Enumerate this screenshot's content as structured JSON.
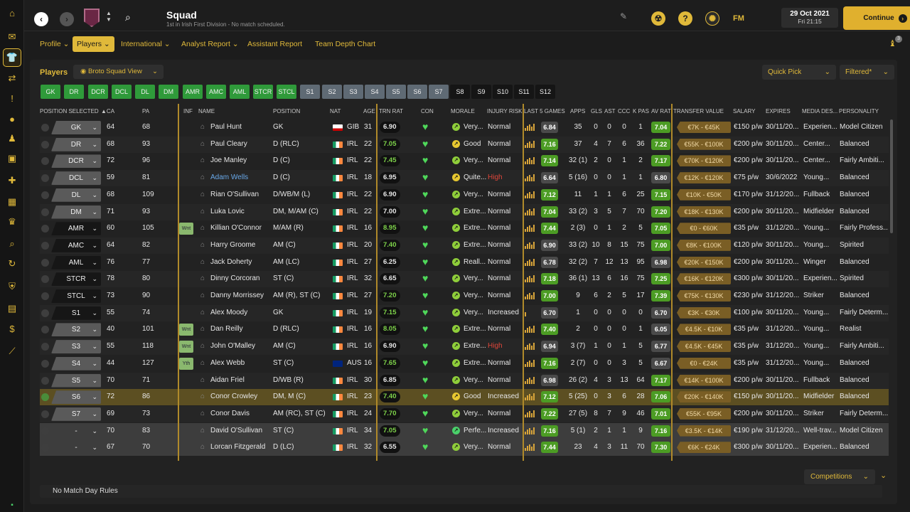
{
  "app": {
    "title": "Squad",
    "subtitle": "1st in Irish First Division - No match scheduled.",
    "date": "29 Oct 2021",
    "time": "Fri 21:15",
    "continue_label": "Continue",
    "fm_label": "FM",
    "notification_count": "3"
  },
  "nav_tabs": [
    {
      "label": "Profile"
    },
    {
      "label": "Players"
    },
    {
      "label": "International"
    },
    {
      "label": "Analyst Report"
    },
    {
      "label": "Assistant Report"
    },
    {
      "label": "Team Depth Chart"
    }
  ],
  "toolbar": {
    "section_label": "Players",
    "view_label": "Broto Squad View",
    "quick_pick": "Quick Pick",
    "filtered": "Filtered*"
  },
  "position_chips": [
    "GK",
    "DR",
    "DCR",
    "DCL",
    "DL",
    "DM",
    "AMR",
    "AMC",
    "AML",
    "STCR",
    "STCL",
    "S1",
    "S2",
    "S3",
    "S4",
    "S5",
    "S6",
    "S7",
    "S8",
    "S9",
    "S10",
    "S11",
    "S12"
  ],
  "columns": {
    "position_selected": "POSITION SELECTED",
    "ca": "CA",
    "pa": "PA",
    "inf": "INF",
    "name": "NAME",
    "position": "POSITION",
    "nat": "NAT",
    "age": "AGE",
    "trn_rat": "TRN RAT",
    "con": "CON",
    "morale": "MORALE",
    "injury_risk": "INJURY RISK",
    "last5": "LAST 5 GAMES",
    "apps": "APPS",
    "gls": "GLS",
    "ast": "AST",
    "ccc": "CCC",
    "kpas": "K PAS",
    "avrat": "AV RAT",
    "transfer_value": "TRANSFER VALUE",
    "salary": "SALARY",
    "expires": "EXPIRES",
    "media_desc": "MEDIA DES...",
    "personality": "PERSONALITY"
  },
  "players": [
    {
      "sel": "GK",
      "ca": "64",
      "pa": "68",
      "inf": "",
      "name": "Paul Hunt",
      "position": "GK",
      "nat": "GIB",
      "age": "31",
      "trn": "6.90",
      "morale": "Very...",
      "injury": "Normal",
      "last5": "6.84",
      "apps": "35",
      "gls": "0",
      "ast": "0",
      "ccc": "0",
      "kpas": "1",
      "avrat": "7.04",
      "tv": "€7K - €45K",
      "salary": "€150 p/w",
      "expires": "30/11/20...",
      "media": "Experien...",
      "personality": "Model Citizen"
    },
    {
      "sel": "DR",
      "ca": "68",
      "pa": "93",
      "inf": "",
      "name": "Paul Cleary",
      "position": "D (RLC)",
      "nat": "IRL",
      "age": "22",
      "trn": "7.05",
      "morale": "Good",
      "injury": "Normal",
      "last5": "7.16",
      "apps": "37",
      "gls": "4",
      "ast": "7",
      "ccc": "6",
      "kpas": "36",
      "avrat": "7.22",
      "tv": "€55K - €100K",
      "salary": "€200 p/w",
      "expires": "30/11/20...",
      "media": "Center...",
      "personality": "Balanced"
    },
    {
      "sel": "DCR",
      "ca": "72",
      "pa": "96",
      "inf": "",
      "name": "Joe Manley",
      "position": "D (C)",
      "nat": "IRL",
      "age": "22",
      "trn": "7.45",
      "morale": "Very...",
      "injury": "Normal",
      "last5": "7.14",
      "apps": "32 (1)",
      "gls": "2",
      "ast": "0",
      "ccc": "1",
      "kpas": "2",
      "avrat": "7.17",
      "tv": "€70K - €120K",
      "salary": "€200 p/w",
      "expires": "30/11/20...",
      "media": "Center...",
      "personality": "Fairly Ambiti..."
    },
    {
      "sel": "DCL",
      "ca": "59",
      "pa": "81",
      "inf": "",
      "name": "Adam Wells",
      "position": "D (C)",
      "nat": "IRL",
      "age": "18",
      "trn": "6.95",
      "morale": "Quite...",
      "injury": "High",
      "last5": "6.64",
      "apps": "5 (16)",
      "gls": "0",
      "ast": "0",
      "ccc": "1",
      "kpas": "1",
      "avrat": "6.80",
      "tv": "€12K - €120K",
      "salary": "€75 p/w",
      "expires": "30/6/2022",
      "media": "Young...",
      "personality": "Balanced"
    },
    {
      "sel": "DL",
      "ca": "68",
      "pa": "109",
      "inf": "",
      "name": "Rian O'Sullivan",
      "position": "D/WB/M (L)",
      "nat": "IRL",
      "age": "22",
      "trn": "6.90",
      "morale": "Very...",
      "injury": "Normal",
      "last5": "7.12",
      "apps": "11",
      "gls": "1",
      "ast": "1",
      "ccc": "6",
      "kpas": "25",
      "avrat": "7.15",
      "tv": "€10K - €50K",
      "salary": "€170 p/w",
      "expires": "31/12/20...",
      "media": "Fullback",
      "personality": "Balanced"
    },
    {
      "sel": "DM",
      "ca": "71",
      "pa": "93",
      "inf": "",
      "name": "Luka Lovic",
      "position": "DM, M/AM (C)",
      "nat": "IRL",
      "age": "22",
      "trn": "7.00",
      "morale": "Extre...",
      "injury": "Normal",
      "last5": "7.04",
      "apps": "33 (2)",
      "gls": "3",
      "ast": "5",
      "ccc": "7",
      "kpas": "70",
      "avrat": "7.20",
      "tv": "€18K - €130K",
      "salary": "€200 p/w",
      "expires": "30/11/20...",
      "media": "Midfielder",
      "personality": "Balanced"
    },
    {
      "sel": "AMR",
      "ca": "60",
      "pa": "105",
      "inf": "Wnt",
      "name": "Killian O'Connor",
      "position": "M/AM (R)",
      "nat": "IRL",
      "age": "16",
      "trn": "8.95",
      "morale": "Extre...",
      "injury": "Normal",
      "last5": "7.44",
      "apps": "2 (3)",
      "gls": "0",
      "ast": "1",
      "ccc": "2",
      "kpas": "5",
      "avrat": "7.05",
      "tv": "€0 - €60K",
      "salary": "€35 p/w",
      "expires": "31/12/20...",
      "media": "Young...",
      "personality": "Fairly Profess..."
    },
    {
      "sel": "AMC",
      "ca": "64",
      "pa": "82",
      "inf": "",
      "name": "Harry Groome",
      "position": "AM (C)",
      "nat": "IRL",
      "age": "20",
      "trn": "7.40",
      "morale": "Extre...",
      "injury": "Normal",
      "last5": "6.90",
      "apps": "33 (2)",
      "gls": "10",
      "ast": "8",
      "ccc": "15",
      "kpas": "75",
      "avrat": "7.00",
      "tv": "€8K - €100K",
      "salary": "€120 p/w",
      "expires": "30/11/20...",
      "media": "Young...",
      "personality": "Spirited"
    },
    {
      "sel": "AML",
      "ca": "76",
      "pa": "77",
      "inf": "",
      "name": "Jack Doherty",
      "position": "AM (LC)",
      "nat": "IRL",
      "age": "27",
      "trn": "6.25",
      "morale": "Reall...",
      "injury": "Normal",
      "last5": "6.78",
      "apps": "32 (2)",
      "gls": "7",
      "ast": "12",
      "ccc": "13",
      "kpas": "95",
      "avrat": "6.98",
      "tv": "€20K - €150K",
      "salary": "€200 p/w",
      "expires": "30/11/20...",
      "media": "Winger",
      "personality": "Balanced"
    },
    {
      "sel": "STCR",
      "ca": "78",
      "pa": "80",
      "inf": "",
      "name": "Dinny Corcoran",
      "position": "ST (C)",
      "nat": "IRL",
      "age": "32",
      "trn": "6.65",
      "morale": "Very...",
      "injury": "Normal",
      "last5": "7.18",
      "apps": "36 (1)",
      "gls": "13",
      "ast": "6",
      "ccc": "16",
      "kpas": "75",
      "avrat": "7.25",
      "tv": "€16K - €120K",
      "salary": "€300 p/w",
      "expires": "30/11/20...",
      "media": "Experien...",
      "personality": "Spirited"
    },
    {
      "sel": "STCL",
      "ca": "73",
      "pa": "90",
      "inf": "",
      "name": "Danny Morrissey",
      "position": "AM (R), ST (C)",
      "nat": "IRL",
      "age": "27",
      "trn": "7.20",
      "morale": "Very...",
      "injury": "Normal",
      "last5": "7.00",
      "apps": "9",
      "gls": "6",
      "ast": "2",
      "ccc": "5",
      "kpas": "17",
      "avrat": "7.39",
      "tv": "€75K - €130K",
      "salary": "€230 p/w",
      "expires": "31/12/20...",
      "media": "Striker",
      "personality": "Balanced"
    },
    {
      "sel": "S1",
      "ca": "55",
      "pa": "74",
      "inf": "",
      "name": "Alex Moody",
      "position": "GK",
      "nat": "IRL",
      "age": "19",
      "trn": "7.15",
      "morale": "Very...",
      "injury": "Increased",
      "last5": "6.70",
      "apps": "1",
      "gls": "0",
      "ast": "0",
      "ccc": "0",
      "kpas": "0",
      "avrat": "6.70",
      "tv": "€3K - €30K",
      "salary": "€100 p/w",
      "expires": "30/11/20...",
      "media": "Young...",
      "personality": "Fairly Determ..."
    },
    {
      "sel": "S2",
      "ca": "40",
      "pa": "101",
      "inf": "Wnt",
      "name": "Dan Reilly",
      "position": "D (RLC)",
      "nat": "IRL",
      "age": "16",
      "trn": "8.05",
      "morale": "Extre...",
      "injury": "Normal",
      "last5": "7.40",
      "apps": "2",
      "gls": "0",
      "ast": "0",
      "ccc": "0",
      "kpas": "1",
      "avrat": "6.05",
      "tv": "€4.5K - €10K",
      "salary": "€35 p/w",
      "expires": "31/12/20...",
      "media": "Young...",
      "personality": "Realist"
    },
    {
      "sel": "S3",
      "ca": "55",
      "pa": "118",
      "inf": "Wnt",
      "name": "John O'Malley",
      "position": "AM (C)",
      "nat": "IRL",
      "age": "16",
      "trn": "6.90",
      "morale": "Extre...",
      "injury": "High",
      "last5": "6.94",
      "apps": "3 (7)",
      "gls": "1",
      "ast": "0",
      "ccc": "1",
      "kpas": "5",
      "avrat": "6.77",
      "tv": "€4.5K - €45K",
      "salary": "€35 p/w",
      "expires": "31/12/20...",
      "media": "Young...",
      "personality": "Fairly Ambiti..."
    },
    {
      "sel": "S4",
      "ca": "44",
      "pa": "127",
      "inf": "Yth",
      "name": "Alex Webb",
      "position": "ST (C)",
      "nat": "AUS",
      "age": "16",
      "trn": "7.65",
      "morale": "Extre...",
      "injury": "Normal",
      "last5": "7.16",
      "apps": "2 (7)",
      "gls": "0",
      "ast": "0",
      "ccc": "3",
      "kpas": "5",
      "avrat": "6.67",
      "tv": "€0 - €24K",
      "salary": "€35 p/w",
      "expires": "31/12/20...",
      "media": "Young...",
      "personality": "Balanced"
    },
    {
      "sel": "S5",
      "ca": "70",
      "pa": "71",
      "inf": "",
      "name": "Aidan Friel",
      "position": "D/WB (R)",
      "nat": "IRL",
      "age": "30",
      "trn": "6.85",
      "morale": "Very...",
      "injury": "Normal",
      "last5": "6.98",
      "apps": "26 (2)",
      "gls": "4",
      "ast": "3",
      "ccc": "13",
      "kpas": "64",
      "avrat": "7.17",
      "tv": "€14K - €100K",
      "salary": "€200 p/w",
      "expires": "30/11/20...",
      "media": "Fullback",
      "personality": "Balanced"
    },
    {
      "sel": "S6",
      "ca": "72",
      "pa": "86",
      "inf": "",
      "name": "Conor Crowley",
      "position": "DM, M (C)",
      "nat": "IRL",
      "age": "23",
      "trn": "7.40",
      "morale": "Good",
      "injury": "Increased",
      "last5": "7.12",
      "apps": "5 (25)",
      "gls": "0",
      "ast": "3",
      "ccc": "6",
      "kpas": "28",
      "avrat": "7.06",
      "tv": "€20K - €140K",
      "salary": "€150 p/w",
      "expires": "30/11/20...",
      "media": "Midfielder",
      "personality": "Balanced"
    },
    {
      "sel": "S7",
      "ca": "69",
      "pa": "73",
      "inf": "",
      "name": "Conor Davis",
      "position": "AM (RC), ST (C)",
      "nat": "IRL",
      "age": "24",
      "trn": "7.70",
      "morale": "Very...",
      "injury": "Normal",
      "last5": "7.22",
      "apps": "27 (5)",
      "gls": "8",
      "ast": "7",
      "ccc": "9",
      "kpas": "46",
      "avrat": "7.01",
      "tv": "€55K - €95K",
      "salary": "€200 p/w",
      "expires": "30/11/20...",
      "media": "Striker",
      "personality": "Fairly Determ..."
    },
    {
      "sel": "-",
      "ca": "70",
      "pa": "83",
      "inf": "",
      "name": "David O'Sullivan",
      "position": "ST (C)",
      "nat": "IRL",
      "age": "34",
      "trn": "7.05",
      "morale": "Perfe...",
      "injury": "Increased",
      "last5": "7.16",
      "apps": "5 (1)",
      "gls": "2",
      "ast": "1",
      "ccc": "1",
      "kpas": "9",
      "avrat": "7.16",
      "tv": "€3.5K - €14K",
      "salary": "€190 p/w",
      "expires": "31/12/20...",
      "media": "Well-trav...",
      "personality": "Model Citizen"
    },
    {
      "sel": "-",
      "ca": "67",
      "pa": "70",
      "inf": "",
      "name": "Lorcan Fitzgerald",
      "position": "D (LC)",
      "nat": "IRL",
      "age": "32",
      "trn": "6.55",
      "morale": "Very...",
      "injury": "Normal",
      "last5": "7.44",
      "apps": "23",
      "gls": "4",
      "ast": "3",
      "ccc": "11",
      "kpas": "70",
      "avrat": "7.30",
      "tv": "€6K - €24K",
      "salary": "€300 p/w",
      "expires": "30/11/20...",
      "media": "Experien...",
      "personality": "Balanced"
    }
  ],
  "footer": {
    "competitions": "Competitions",
    "rules": "No Match Day Rules"
  },
  "colors": {
    "accent": "#e0b93a",
    "green": "#4c9c24",
    "red": "#e0463a"
  }
}
